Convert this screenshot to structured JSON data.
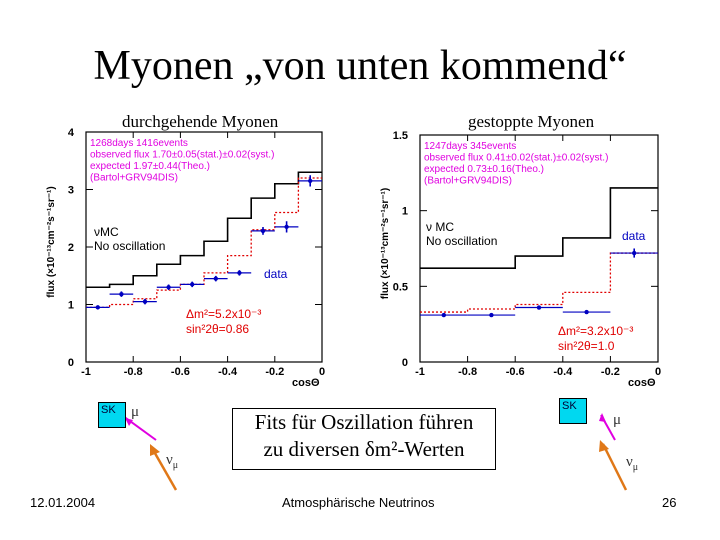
{
  "title": "Myonen „von unten kommend“",
  "left_subtitle": "durchgehende Myonen",
  "right_subtitle": "gestoppte Myonen",
  "fit_box": {
    "line1": "Fits für Oszillation führen",
    "line2": "zu diversen δm²-Werten"
  },
  "footer": {
    "date": "12.01.2004",
    "center": "Atmosphärische Neutrinos",
    "page": "26"
  },
  "detector": {
    "label": "SK",
    "mu": "μ",
    "nu": "ν",
    "nu_sub": "μ",
    "box_color": "#00d8f0",
    "arrow_color": "#e07818",
    "mu_track_color": "#e000e0"
  },
  "chart_data": [
    {
      "type": "line",
      "panel": "left",
      "xlabel": "cosΘ",
      "ylabel": "flux (×10⁻¹³cm⁻²s⁻¹sr⁻¹)",
      "xlim": [
        -1,
        0
      ],
      "ylim": [
        0,
        4
      ],
      "xticks": [
        -1,
        -0.8,
        -0.6,
        -0.4,
        -0.2,
        0
      ],
      "xtick_labels": [
        "-1",
        "-0.8",
        "-0.6",
        "-0.4",
        "-0.2",
        "0"
      ],
      "yticks": [
        0,
        1,
        2,
        3,
        4
      ],
      "ytick_labels": [
        "0",
        "1",
        "2",
        "3",
        "4"
      ],
      "info_lines": [
        "1268days  1416events",
        "observed flux 1.70±0.05(stat.)±0.02(syst.)",
        "expected      1.97±0.44(Theo.)",
        "(Bartol+GRV94DIS)"
      ],
      "mc_label_lines": [
        "νMC",
        "No oscillation"
      ],
      "data_label": "data",
      "fit_label_lines": [
        "Δm²=5.2x10⁻³",
        "sin²2θ=0.86"
      ],
      "bin_edges": [
        -1,
        -0.9,
        -0.8,
        -0.7,
        -0.6,
        -0.5,
        -0.4,
        -0.3,
        -0.2,
        -0.1,
        0
      ],
      "series": [
        {
          "name": "νMC No oscillation",
          "color": "#000000",
          "style": "solid",
          "values": [
            1.3,
            1.35,
            1.5,
            1.7,
            1.85,
            2.1,
            2.5,
            2.85,
            3.1,
            3.3
          ]
        },
        {
          "name": "Δm²=5.2x10⁻³ sin²2θ=0.86",
          "color": "#e00000",
          "style": "dotted",
          "values": [
            0.95,
            1.0,
            1.1,
            1.25,
            1.35,
            1.55,
            1.85,
            2.3,
            2.6,
            3.2
          ]
        },
        {
          "name": "data",
          "color": "#0000c0",
          "style": "points",
          "x": [
            -0.95,
            -0.85,
            -0.75,
            -0.65,
            -0.55,
            -0.45,
            -0.35,
            -0.25,
            -0.15,
            -0.05
          ],
          "y": [
            0.95,
            1.18,
            1.05,
            1.3,
            1.35,
            1.45,
            1.55,
            2.28,
            2.35,
            3.15
          ],
          "err": [
            0.07,
            0.1,
            0.1,
            0.1,
            0.1,
            0.1,
            0.1,
            0.12,
            0.15,
            0.15
          ]
        }
      ]
    },
    {
      "type": "line",
      "panel": "right",
      "xlabel": "cosΘ",
      "ylabel": "flux (×10⁻¹³cm⁻²s⁻¹sr⁻¹)",
      "xlim": [
        -1,
        0
      ],
      "ylim": [
        0,
        1.5
      ],
      "xticks": [
        -1,
        -0.8,
        -0.6,
        -0.4,
        -0.2,
        0
      ],
      "xtick_labels": [
        "-1",
        "-0.8",
        "-0.6",
        "-0.4",
        "-0.2",
        "0"
      ],
      "yticks": [
        0,
        0.5,
        1,
        1.5
      ],
      "ytick_labels": [
        "0",
        "0.5",
        "1",
        "1.5"
      ],
      "info_lines": [
        "1247days  345events",
        "observed flux 0.41±0.02(stat.)±0.02(syst.)",
        "expected      0.73±0.16(Theo.)",
        "(Bartol+GRV94DIS)"
      ],
      "mc_label_lines": [
        "ν MC",
        "No oscillation"
      ],
      "data_label": "data",
      "fit_label_lines": [
        "Δm²=3.2x10⁻³",
        "sin²2θ=1.0"
      ],
      "bin_edges": [
        -1,
        -0.8,
        -0.6,
        -0.4,
        -0.2,
        0
      ],
      "series": [
        {
          "name": "ν MC No oscillation",
          "color": "#000000",
          "style": "solid",
          "values": [
            0.62,
            0.62,
            0.7,
            0.82,
            1.15
          ]
        },
        {
          "name": "Δm²=3.2x10⁻³ sin²2θ=1.0",
          "color": "#e00000",
          "style": "dotted",
          "values": [
            0.33,
            0.35,
            0.38,
            0.46,
            0.72
          ]
        },
        {
          "name": "data",
          "color": "#0000c0",
          "style": "points",
          "x": [
            -0.9,
            -0.7,
            -0.5,
            -0.3,
            -0.1
          ],
          "y": [
            0.31,
            0.31,
            0.36,
            0.33,
            0.72
          ],
          "err": [
            0.03,
            0.03,
            0.03,
            0.03,
            0.05
          ]
        }
      ]
    }
  ]
}
